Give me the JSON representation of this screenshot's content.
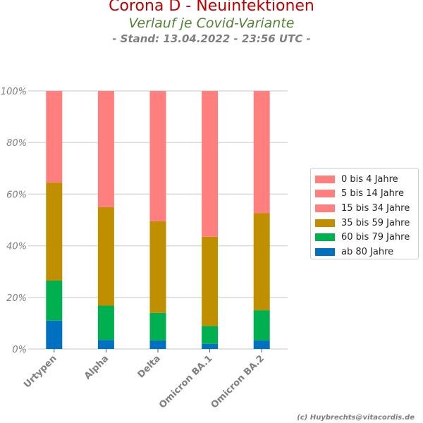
{
  "header": {
    "title": "Corona D - Neuinfektionen",
    "subtitle": "Verlauf je Covid-Variante",
    "stand": "- Stand: 13.04.2022 - 23:56 UTC -"
  },
  "footer": {
    "copyright": "(c) Huybrechts@vitacordis.de"
  },
  "colors": {
    "0 bis 4 Jahre": "#ff7f7f",
    "5 bis 14 Jahre": "#ff7f7f",
    "15 bis 34 Jahre": "#ff7f7f",
    "35 bis 59 Jahre": "#bf8f00",
    "60 bis 79 Jahre": "#00b050",
    "ab 80 Jahre": "#0070c0",
    "grid": "#d9d9d9"
  },
  "chart_data": {
    "type": "bar",
    "stacked": true,
    "title": "Corona D - Neuinfektionen",
    "subtitle": "Verlauf je Covid-Variante",
    "xlabel": "",
    "ylabel": "",
    "ylim": [
      0,
      100
    ],
    "yticks": [
      "0%",
      "20%",
      "40%",
      "60%",
      "80%",
      "100%"
    ],
    "categories": [
      "Urtypen",
      "Alpha",
      "Delta",
      "Omicron BA.1",
      "Omicron BA.2"
    ],
    "legend_position": "right",
    "legend": [
      "0 bis 4 Jahre",
      "5 bis 14 Jahre",
      "15 bis 34 Jahre",
      "35 bis 59 Jahre",
      "60 bis 79 Jahre",
      "ab 80 Jahre"
    ],
    "series": [
      {
        "name": "ab 80 Jahre",
        "values": [
          11,
          3.5,
          3.3,
          2,
          3.3
        ]
      },
      {
        "name": "60 bis 79 Jahre",
        "values": [
          15.5,
          13.3,
          10.7,
          6.9,
          11.7
        ]
      },
      {
        "name": "35 bis 59 Jahre",
        "values": [
          38,
          38.2,
          35.5,
          34.6,
          37.6
        ]
      },
      {
        "name": "15 bis 34 Jahre",
        "values": [
          35.5,
          45,
          50.5,
          56.5,
          47.4
        ]
      },
      {
        "name": "5 bis 14 Jahre",
        "values": [
          0,
          0,
          0,
          0,
          0
        ]
      },
      {
        "name": "0 bis 4 Jahre",
        "values": [
          0,
          0,
          0,
          0,
          0
        ]
      }
    ]
  }
}
